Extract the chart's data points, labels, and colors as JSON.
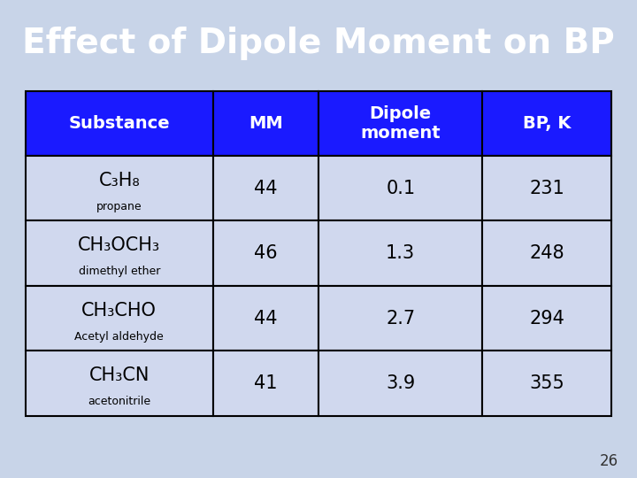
{
  "title": "Effect of Dipole Moment on BP",
  "title_bg": "#1a1a1a",
  "title_color": "#ffffff",
  "title_fontsize": 28,
  "slide_bg": "#c8d4e8",
  "footer_bg": "#9aaa99",
  "page_number": "26",
  "header_bg": "#1a1aff",
  "header_text_color": "#ffffff",
  "cell_bg": "#d0d8ee",
  "table_border_color": "#000000",
  "headers": [
    "Substance",
    "MM",
    "Dipole\nmoment",
    "BP, K"
  ],
  "rows": [
    {
      "formula_main": "C₃H₈",
      "formula_sub": "propane",
      "mm": "44",
      "dipole": "0.1",
      "bp": "231"
    },
    {
      "formula_main": "CH₃OCH₃",
      "formula_sub": "dimethyl ether",
      "mm": "46",
      "dipole": "1.3",
      "bp": "248"
    },
    {
      "formula_main": "CH₃CHO",
      "formula_sub": "Acetyl aldehyde",
      "mm": "44",
      "dipole": "2.7",
      "bp": "294"
    },
    {
      "formula_main": "CH₃CN",
      "formula_sub": "acetonitrile",
      "mm": "41",
      "dipole": "3.9",
      "bp": "355"
    }
  ]
}
